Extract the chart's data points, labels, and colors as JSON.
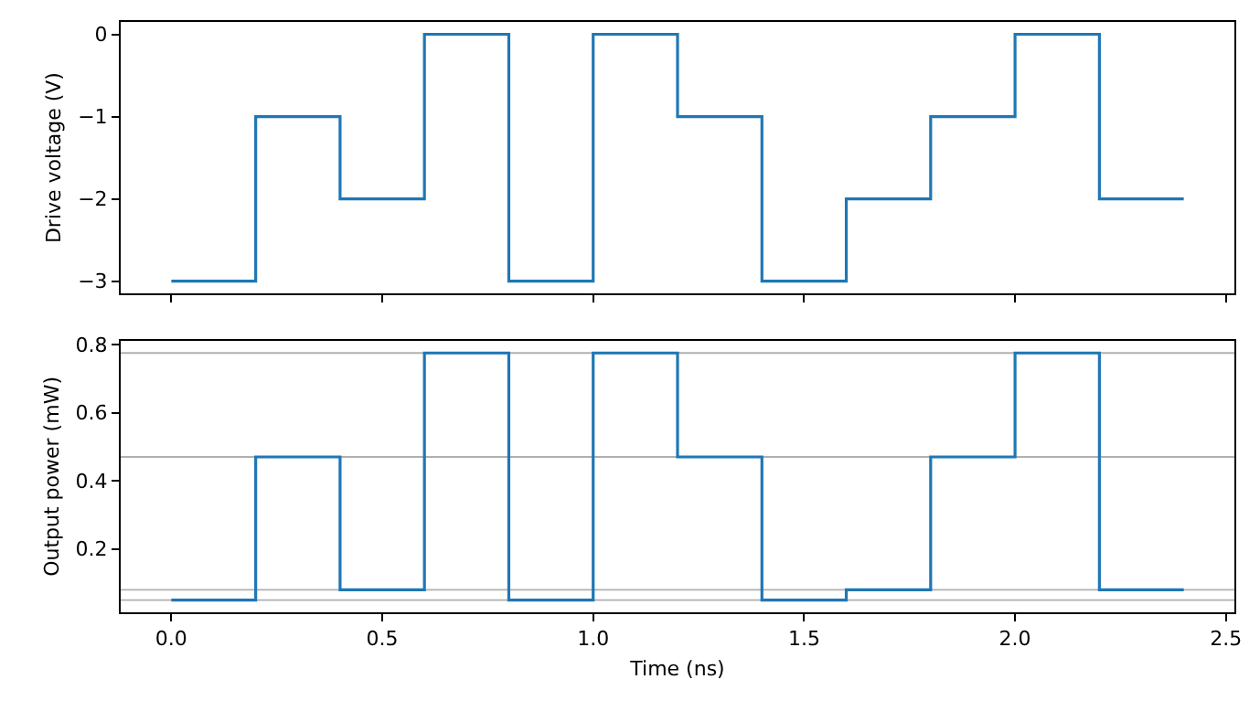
{
  "chart_data": [
    {
      "type": "step",
      "ylabel": "Drive voltage (V)",
      "x": [
        0,
        0.2,
        0.4,
        0.6,
        0.8,
        1.0,
        1.2,
        1.4,
        1.6,
        1.8,
        2.0,
        2.2,
        2.4
      ],
      "series": [
        {
          "color": "#1f77b4",
          "values": [
            -3,
            -1,
            -2,
            0,
            -3,
            0,
            -1,
            -3,
            -2,
            -1,
            0,
            -2,
            -2
          ]
        }
      ],
      "xlim": [
        -0.12,
        2.52
      ],
      "xticks": [
        0,
        0.5,
        1,
        1.5,
        2,
        2.5
      ],
      "ylim": [
        -3.15,
        0.15
      ],
      "yticks": [
        {
          "value": -3,
          "label": "−3"
        },
        {
          "value": -2,
          "label": "−2"
        },
        {
          "value": -1,
          "label": "−1"
        },
        0
      ],
      "tick_labels": "y",
      "grid": false
    },
    {
      "type": "step",
      "xlabel": "Time (ns)",
      "ylabel": "Output power (mW)",
      "x": [
        0,
        0.2,
        0.4,
        0.6,
        0.8,
        1.0,
        1.2,
        1.4,
        1.6,
        1.8,
        2.0,
        2.2,
        2.4
      ],
      "series": [
        {
          "color": "#1f77b4",
          "values": [
            0.05,
            0.47,
            0.08,
            0.775,
            0.05,
            0.775,
            0.47,
            0.05,
            0.08,
            0.47,
            0.775,
            0.08,
            0.08
          ]
        }
      ],
      "xlim": [
        -0.12,
        2.52
      ],
      "xticks": [
        {
          "value": 0,
          "label": "0.0"
        },
        0.5,
        {
          "value": 1,
          "label": "1.0"
        },
        1.5,
        {
          "value": 2,
          "label": "2.0"
        },
        2.5
      ],
      "ylim": [
        0.014,
        0.811
      ],
      "yticks": [
        0.2,
        0.4,
        0.6,
        0.8
      ],
      "grid": false,
      "ref_lines": [
        {
          "axis": "y",
          "value": 0.05,
          "color": "#b0b0b0"
        },
        {
          "axis": "y",
          "value": 0.08,
          "color": "#b0b0b0"
        },
        {
          "axis": "y",
          "value": 0.47,
          "color": "#b0b0b0"
        },
        {
          "axis": "y",
          "value": 0.775,
          "color": "#b0b0b0"
        }
      ]
    }
  ]
}
